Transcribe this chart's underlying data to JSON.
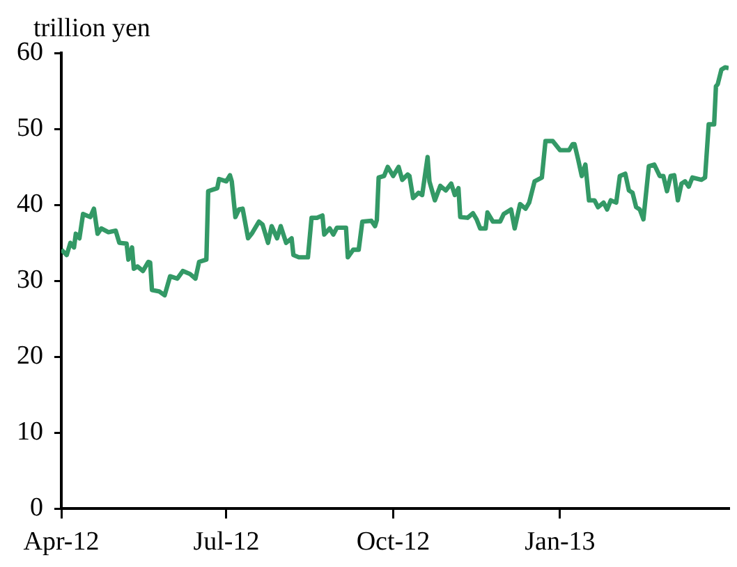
{
  "chart_data": {
    "type": "line",
    "ylabel": "trillion yen",
    "xlim": [
      "2012-04-01",
      "2013-04-04"
    ],
    "xticks": [
      {
        "value": "2012-04-01",
        "label": "Apr-12"
      },
      {
        "value": "2012-07-01",
        "label": "Jul-12"
      },
      {
        "value": "2012-10-01",
        "label": "Oct-12"
      },
      {
        "value": "2013-01-01",
        "label": "Jan-13"
      }
    ],
    "ylim": [
      0,
      60
    ],
    "yticks": [
      0,
      10,
      20,
      30,
      40,
      50,
      60
    ],
    "grid": false,
    "legend": false,
    "marker": "none",
    "line_style": "solid",
    "series": [
      {
        "color": "#339966",
        "x": [
          "2012-04-01",
          "2012-04-04",
          "2012-04-06",
          "2012-04-08",
          "2012-04-09",
          "2012-04-11",
          "2012-04-13",
          "2012-04-17",
          "2012-04-19",
          "2012-04-21",
          "2012-04-23",
          "2012-04-27",
          "2012-05-01",
          "2012-05-03",
          "2012-05-07",
          "2012-05-08",
          "2012-05-10",
          "2012-05-11",
          "2012-05-13",
          "2012-05-16",
          "2012-05-19",
          "2012-05-20",
          "2012-05-21",
          "2012-05-25",
          "2012-05-28",
          "2012-05-31",
          "2012-06-04",
          "2012-06-07",
          "2012-06-11",
          "2012-06-14",
          "2012-06-16",
          "2012-06-20",
          "2012-06-21",
          "2012-06-26",
          "2012-06-27",
          "2012-07-01",
          "2012-07-03",
          "2012-07-04",
          "2012-07-06",
          "2012-07-08",
          "2012-07-10",
          "2012-07-13",
          "2012-07-15",
          "2012-07-19",
          "2012-07-21",
          "2012-07-24",
          "2012-07-26",
          "2012-07-29",
          "2012-07-31",
          "2012-08-03",
          "2012-08-06",
          "2012-08-07",
          "2012-08-10",
          "2012-08-15",
          "2012-08-17",
          "2012-08-20",
          "2012-08-23",
          "2012-08-24",
          "2012-08-27",
          "2012-08-29",
          "2012-08-31",
          "2012-09-05",
          "2012-09-06",
          "2012-09-09",
          "2012-09-12",
          "2012-09-14",
          "2012-09-19",
          "2012-09-21",
          "2012-09-22",
          "2012-09-23",
          "2012-09-26",
          "2012-09-28",
          "2012-10-01",
          "2012-10-04",
          "2012-10-06",
          "2012-10-09",
          "2012-10-10",
          "2012-10-12",
          "2012-10-15",
          "2012-10-17",
          "2012-10-20",
          "2012-10-21",
          "2012-10-24",
          "2012-10-27",
          "2012-10-30",
          "2012-11-02",
          "2012-11-04",
          "2012-11-06",
          "2012-11-07",
          "2012-11-11",
          "2012-11-14",
          "2012-11-16",
          "2012-11-18",
          "2012-11-21",
          "2012-11-22",
          "2012-11-25",
          "2012-11-29",
          "2012-12-01",
          "2012-12-05",
          "2012-12-07",
          "2012-12-10",
          "2012-12-13",
          "2012-12-15",
          "2012-12-18",
          "2012-12-22",
          "2012-12-24",
          "2012-12-28",
          "2013-01-01",
          "2013-01-06",
          "2013-01-08",
          "2013-01-09",
          "2013-01-11",
          "2013-01-13",
          "2013-01-15",
          "2013-01-17",
          "2013-01-20",
          "2013-01-22",
          "2013-01-25",
          "2013-01-27",
          "2013-01-29",
          "2013-02-01",
          "2013-02-03",
          "2013-02-06",
          "2013-02-08",
          "2013-02-10",
          "2013-02-12",
          "2013-02-14",
          "2013-02-16",
          "2013-02-19",
          "2013-02-22",
          "2013-02-25",
          "2013-02-27",
          "2013-03-01",
          "2013-03-03",
          "2013-03-05",
          "2013-03-07",
          "2013-03-09",
          "2013-03-11",
          "2013-03-13",
          "2013-03-15",
          "2013-03-20",
          "2013-03-22",
          "2013-03-24",
          "2013-03-27",
          "2013-03-28",
          "2013-03-29",
          "2013-03-31",
          "2013-04-02",
          "2013-04-04"
        ],
        "values": [
          34.1,
          33.4,
          35,
          34.4,
          36.2,
          35.6,
          38.8,
          38.4,
          39.5,
          36.2,
          36.9,
          36.4,
          36.6,
          35,
          34.9,
          32.8,
          34.4,
          31.6,
          31.9,
          31.3,
          32.5,
          32.4,
          28.8,
          28.6,
          28.1,
          30.6,
          30.3,
          31.3,
          30.9,
          30.3,
          32.5,
          32.8,
          41.8,
          42.2,
          43.4,
          43.1,
          43.9,
          43.1,
          38.4,
          39.4,
          39.5,
          35.6,
          36.2,
          37.8,
          37.4,
          35,
          37.2,
          35.6,
          37.2,
          35,
          35.6,
          33.4,
          33.1,
          33.1,
          38.3,
          38.3,
          38.6,
          36.1,
          36.9,
          36.1,
          37,
          37,
          33.1,
          34.1,
          34.1,
          37.8,
          37.9,
          37.2,
          38,
          43.6,
          43.8,
          45,
          43.8,
          45,
          43.3,
          44,
          43.8,
          40.9,
          41.6,
          41.3,
          46.3,
          43.1,
          40.6,
          42.5,
          41.9,
          42.8,
          41.3,
          42.2,
          38.4,
          38.3,
          38.9,
          38.1,
          36.9,
          36.9,
          39,
          37.8,
          37.8,
          38.8,
          39.4,
          36.9,
          40.1,
          39.5,
          40.3,
          43.1,
          43.6,
          48.4,
          48.4,
          47.2,
          47.2,
          48,
          48,
          46,
          43.8,
          45.3,
          40.6,
          40.6,
          39.7,
          40.3,
          39.4,
          40.6,
          40.3,
          43.8,
          44.1,
          41.9,
          41.6,
          39.7,
          39.4,
          38.1,
          45.1,
          45.3,
          43.8,
          43.8,
          41.8,
          43.8,
          43.9,
          40.6,
          42.8,
          43.1,
          42.4,
          43.6,
          43.3,
          43.6,
          50.6,
          50.6,
          55.6,
          55.9,
          57.8,
          58.1,
          58
        ]
      }
    ]
  }
}
